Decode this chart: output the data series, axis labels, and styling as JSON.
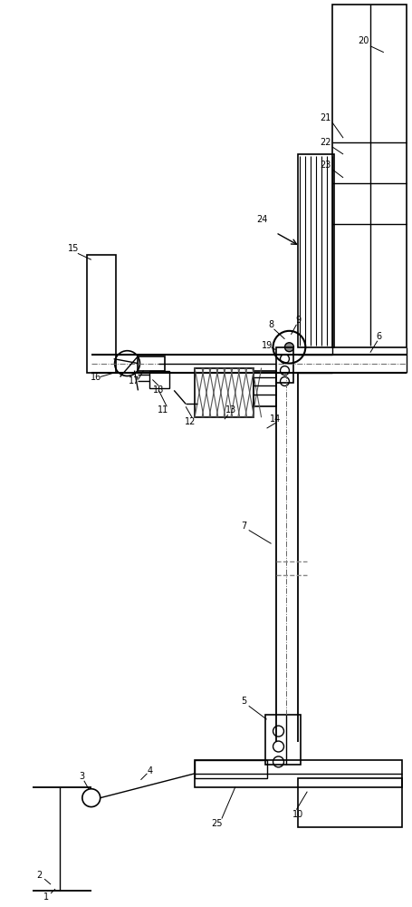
{
  "bg_color": "#ffffff",
  "line_color": "#000000",
  "lw": 1.0,
  "fig_width": 4.56,
  "fig_height": 10.0,
  "label_fs": 7.0
}
